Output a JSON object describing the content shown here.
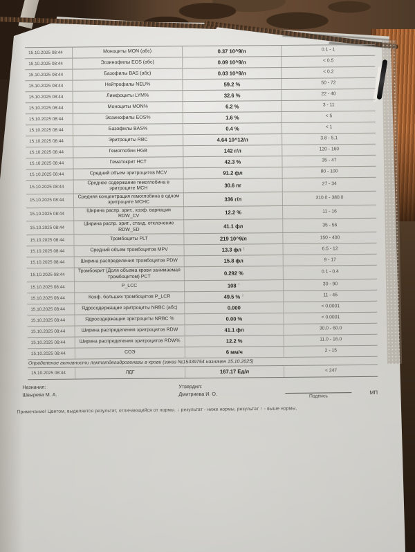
{
  "colors": {
    "paper": "#d6d5d0",
    "couch_corduroy": "#a05d2e",
    "couch_dark": "#2d2014",
    "rug_brown": "#6b4e37",
    "print_text": "#35352f"
  },
  "table": {
    "rows": [
      {
        "date": "15.10.2025 08:44",
        "name": "Моноциты MON (абс)",
        "result": "0.37 10^9/л",
        "flag": "",
        "ref": "0.1 - 1"
      },
      {
        "date": "15.10.2025 08:44",
        "name": "Эозинофилы EOS (абс)",
        "result": "0.09 10^9/л",
        "flag": "",
        "ref": "< 0.5"
      },
      {
        "date": "15.10.2025 08:44",
        "name": "Базофилы BAS (абс)",
        "result": "0.03 10^9/л",
        "flag": "",
        "ref": "< 0.2"
      },
      {
        "date": "15.10.2025 08:44",
        "name": "Нейтрофилы NEU%",
        "result": "59.2 %",
        "flag": "",
        "ref": "50 - 72"
      },
      {
        "date": "15.10.2025 08:44",
        "name": "Лимфоциты LYM%",
        "result": "32.6 %",
        "flag": "",
        "ref": "22 - 40"
      },
      {
        "date": "15.10.2025 08:44",
        "name": "Моноциты MON%",
        "result": "6.2 %",
        "flag": "",
        "ref": "3 - 11"
      },
      {
        "date": "15.10.2025 08:44",
        "name": "Эозинофилы EOS%",
        "result": "1.6 %",
        "flag": "",
        "ref": "< 5"
      },
      {
        "date": "15.10.2025 08:44",
        "name": "Базофилы BAS%",
        "result": "0.4 %",
        "flag": "",
        "ref": "< 1"
      },
      {
        "date": "15.10.2025 08:44",
        "name": "Эритроциты RBC",
        "result": "4.64 10^12/л",
        "flag": "",
        "ref": "3.8 - 5.1"
      },
      {
        "date": "15.10.2025 08:44",
        "name": "Гемоглобин HGB",
        "result": "142 г/л",
        "flag": "",
        "ref": "120 - 160"
      },
      {
        "date": "15.10.2025 08:44",
        "name": "Гематокрит HCT",
        "result": "42.3 %",
        "flag": "",
        "ref": "35 - 47"
      },
      {
        "date": "15.10.2025 08:44",
        "name": "Средний объем эритроцитов MCV",
        "result": "91.2 фл",
        "flag": "",
        "ref": "80 - 100"
      },
      {
        "date": "15.10.2025 08:44",
        "name": "Среднее содержание гемоглобина в эритроците MCH",
        "result": "30.6 пг",
        "flag": "",
        "ref": "27 - 34"
      },
      {
        "date": "15.10.2025 08:44",
        "name": "Средняя концентрация гемоглобина в одном эритроците MCHC",
        "result": "336 г/л",
        "flag": "",
        "ref": "310.0 - 380.0"
      },
      {
        "date": "15.10.2025 08:44",
        "name": "Ширина распр. эрит., коэф. вариации RDW_CV",
        "result": "12.2 %",
        "flag": "",
        "ref": "11 - 16"
      },
      {
        "date": "15.10.2025 08:44",
        "name": "Ширина распр. эрит., станд. отклонение RDW_SD",
        "result": "41.1 фл",
        "flag": "",
        "ref": "35 - 56"
      },
      {
        "date": "15.10.2025 08:44",
        "name": "Тромбоциты PLT",
        "result": "219 10^9/л",
        "flag": "",
        "ref": "150 - 400"
      },
      {
        "date": "15.10.2025 08:44",
        "name": "Средний объем тромбоцитов MPV",
        "result": "13.3 фл",
        "flag": "↑",
        "ref": "6.5 - 12"
      },
      {
        "date": "15.10.2025 08:44",
        "name": "Ширина распределения тромбоцитов PDW",
        "result": "15.8 фл",
        "flag": "",
        "ref": "9 - 17"
      },
      {
        "date": "15.10.2025 08:44",
        "name": "Тромбокрит (Доля объема крови занимаемая тромбоцитом) PCT",
        "result": "0.292 %",
        "flag": "",
        "ref": "0.1 - 0.4"
      },
      {
        "date": "15.10.2025 08:44",
        "name": "P_LCC",
        "result": "108",
        "flag": "↑",
        "ref": "30 - 90"
      },
      {
        "date": "15.10.2025 08:44",
        "name": "Коэф. больших тромбоцитов P_LCR",
        "result": "49.5 %",
        "flag": "↑",
        "ref": "11 - 45"
      },
      {
        "date": "15.10.2025 08:44",
        "name": "Ядросодержащие эритроциты NRBC (абс)",
        "result": "0.000",
        "flag": "",
        "ref": "< 0.0001"
      },
      {
        "date": "15.10.2025 08:44",
        "name": "Ядросодержащие эритроциты NRBC %",
        "result": "0.00 %",
        "flag": "",
        "ref": "< 0.0001"
      },
      {
        "date": "15.10.2025 08:44",
        "name": "Ширина распределения эритроцитов RDW",
        "result": "41.1 фл",
        "flag": "",
        "ref": "30.0 - 60.0"
      },
      {
        "date": "15.10.2025 08:44",
        "name": "Ширина распределения эритроцитов RDW%",
        "result": "12.2 %",
        "flag": "",
        "ref": "11.0 - 16.0"
      },
      {
        "date": "15.10.2025 08:44",
        "name": "СОЭ",
        "result": "6 мм/ч",
        "flag": "",
        "ref": "2 - 15"
      }
    ]
  },
  "ldh": {
    "title": "Определение активности лактатдегидрогеназы в крови (заказ №15339754 назначен  15.10.2025)",
    "rows": [
      {
        "date": "15.10.2025 08:44",
        "name": "ЛДГ",
        "result": "167.17 Ед/л",
        "flag": "",
        "ref": "< 247"
      }
    ]
  },
  "footer": {
    "assigned_label": "Назначил:",
    "assigned_name": "Швырева М. А.",
    "approved_label": "Утвердил:",
    "approved_name": "Дмитриева И. О.",
    "stamp_label": "МП",
    "signature_label": "Подпись",
    "note": "Примечание! Цветом, выделяется результат, отличающийся от нормы. ↓ результат - ниже нормы, результат ↑ - выше нормы."
  }
}
